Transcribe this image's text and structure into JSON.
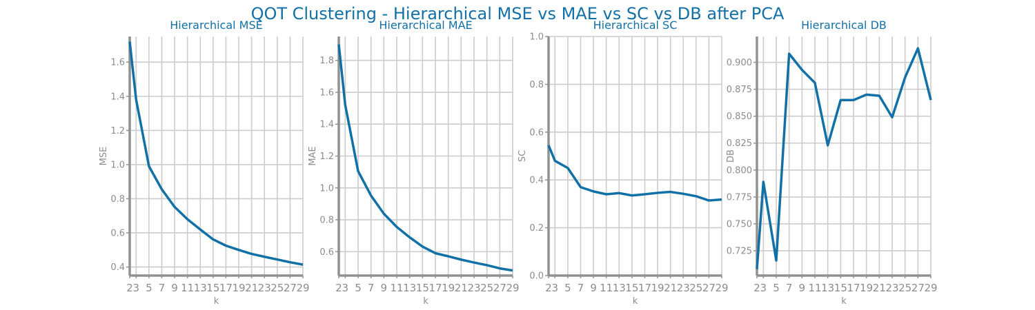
{
  "figure": {
    "title": "QOT Clustering - Hierarchical MSE vs MAE vs SC vs DB after PCA"
  },
  "colors": {
    "line": "#1170a6",
    "title": "#1170a6",
    "grid": "#cccccc",
    "axis": "#919191",
    "tick_text": "#8c8c8c"
  },
  "chart_data": [
    {
      "type": "line",
      "title": "Hierarchical MSE",
      "xlabel": "k",
      "ylabel": "MSE",
      "xlim": [
        2,
        29
      ],
      "ylim": [
        0.35,
        1.75
      ],
      "grid": true,
      "xticks": [
        2,
        3,
        5,
        7,
        9,
        11,
        13,
        15,
        17,
        19,
        21,
        23,
        25,
        27,
        29
      ],
      "xtick_labels": [
        "2",
        "3",
        "5",
        "7",
        "9",
        "11",
        "13",
        "15",
        "17",
        "19",
        "21",
        "23",
        "25",
        "27",
        "29"
      ],
      "yticks": [
        0.4,
        0.6,
        0.8,
        1.0,
        1.2,
        1.4,
        1.6
      ],
      "ytick_labels": [
        "0.4",
        "0.6",
        "0.8",
        "1.0",
        "1.2",
        "1.4",
        "1.6"
      ],
      "x": [
        2,
        3,
        5,
        7,
        9,
        11,
        13,
        15,
        17,
        19,
        21,
        23,
        25,
        27,
        29
      ],
      "values": [
        1.72,
        1.38,
        0.99,
        0.855,
        0.752,
        0.68,
        0.62,
        0.562,
        0.525,
        0.5,
        0.477,
        0.46,
        0.444,
        0.428,
        0.414
      ]
    },
    {
      "type": "line",
      "title": "Hierarchical MAE",
      "xlabel": "k",
      "ylabel": "MAE",
      "xlim": [
        2,
        29
      ],
      "ylim": [
        0.45,
        1.95
      ],
      "grid": true,
      "xticks": [
        2,
        3,
        5,
        7,
        9,
        11,
        13,
        15,
        17,
        19,
        21,
        23,
        25,
        27,
        29
      ],
      "xtick_labels": [
        "2",
        "3",
        "5",
        "7",
        "9",
        "11",
        "13",
        "15",
        "17",
        "19",
        "21",
        "23",
        "25",
        "27",
        "29"
      ],
      "yticks": [
        0.6,
        0.8,
        1.0,
        1.2,
        1.4,
        1.6,
        1.8
      ],
      "ytick_labels": [
        "0.6",
        "0.8",
        "1.0",
        "1.2",
        "1.4",
        "1.6",
        "1.8"
      ],
      "x": [
        2,
        3,
        5,
        7,
        9,
        11,
        13,
        15,
        17,
        19,
        21,
        23,
        25,
        27,
        29
      ],
      "values": [
        1.9,
        1.52,
        1.105,
        0.952,
        0.838,
        0.755,
        0.69,
        0.632,
        0.59,
        0.571,
        0.55,
        0.532,
        0.515,
        0.495,
        0.482
      ]
    },
    {
      "type": "line",
      "title": "Hierarchical SC",
      "xlabel": "k",
      "ylabel": "SC",
      "xlim": [
        2,
        29
      ],
      "ylim": [
        0.0,
        1.0
      ],
      "grid": true,
      "xticks": [
        2,
        3,
        5,
        7,
        9,
        11,
        13,
        15,
        17,
        19,
        21,
        23,
        25,
        27,
        29
      ],
      "xtick_labels": [
        "2",
        "3",
        "5",
        "7",
        "9",
        "11",
        "13",
        "15",
        "17",
        "19",
        "21",
        "23",
        "25",
        "27",
        "29"
      ],
      "yticks": [
        0.0,
        0.2,
        0.4,
        0.6,
        0.8,
        1.0
      ],
      "ytick_labels": [
        "0.0",
        "0.2",
        "0.4",
        "0.6",
        "0.8",
        "1.0"
      ],
      "x": [
        2,
        3,
        5,
        7,
        9,
        11,
        13,
        15,
        17,
        19,
        21,
        23,
        25,
        27,
        29
      ],
      "values": [
        0.545,
        0.48,
        0.45,
        0.37,
        0.352,
        0.34,
        0.345,
        0.335,
        0.34,
        0.346,
        0.35,
        0.342,
        0.332,
        0.314,
        0.318
      ]
    },
    {
      "type": "line",
      "title": "Hierarchical DB",
      "xlabel": "k",
      "ylabel": "DB",
      "xlim": [
        2,
        29
      ],
      "ylim": [
        0.702,
        0.924
      ],
      "grid": true,
      "xticks": [
        2,
        3,
        5,
        7,
        9,
        11,
        13,
        15,
        17,
        19,
        21,
        23,
        25,
        27,
        29
      ],
      "xtick_labels": [
        "2",
        "3",
        "5",
        "7",
        "9",
        "11",
        "13",
        "15",
        "17",
        "19",
        "21",
        "23",
        "25",
        "27",
        "29"
      ],
      "yticks": [
        0.725,
        0.75,
        0.775,
        0.8,
        0.825,
        0.85,
        0.875,
        0.9
      ],
      "ytick_labels": [
        "0.725",
        "0.750",
        "0.775",
        "0.800",
        "0.825",
        "0.850",
        "0.875",
        "0.900"
      ],
      "x": [
        2,
        3,
        5,
        7,
        9,
        11,
        13,
        15,
        17,
        19,
        21,
        23,
        25,
        27,
        29
      ],
      "values": [
        0.708,
        0.789,
        0.716,
        0.908,
        0.893,
        0.881,
        0.823,
        0.865,
        0.865,
        0.87,
        0.869,
        0.849,
        0.886,
        0.913,
        0.865
      ]
    }
  ]
}
